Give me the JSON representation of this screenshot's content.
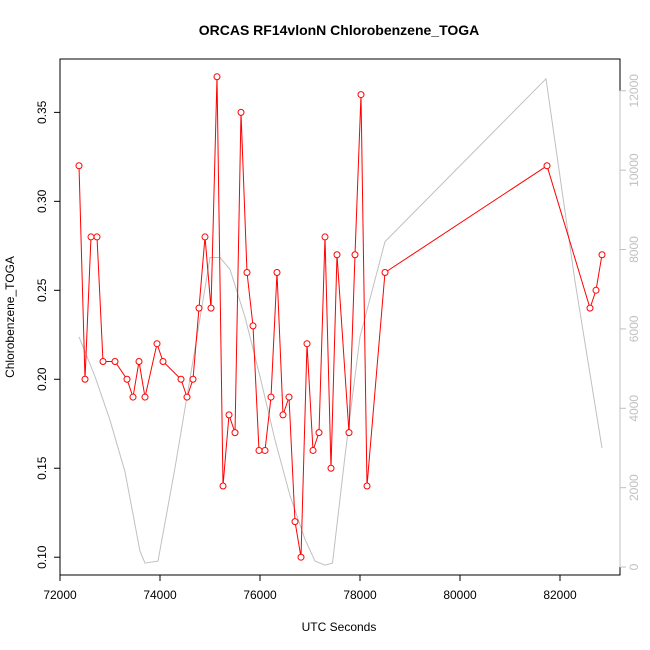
{
  "chart_data": {
    "type": "line",
    "title": "ORCAS RF14vlonN Chlorobenzene_TOGA",
    "xlabel": "UTC Seconds",
    "ylabel": "Chlorobenzene_TOGA",
    "xlim": [
      72000,
      83200
    ],
    "ylim": [
      0.09,
      0.38
    ],
    "y2lim": [
      -200,
      12800
    ],
    "x_ticks": [
      72000,
      74000,
      76000,
      78000,
      80000,
      82000
    ],
    "x_tick_labels": [
      "72000",
      "74000",
      "76000",
      "78000",
      "80000",
      "82000"
    ],
    "y_ticks": [
      0.1,
      0.15,
      0.2,
      0.25,
      0.3,
      0.35
    ],
    "y_tick_labels": [
      "0.10",
      "0.15",
      "0.20",
      "0.25",
      "0.30",
      "0.35"
    ],
    "y2_ticks": [
      0,
      2000,
      4000,
      6000,
      8000,
      10000,
      12000
    ],
    "y2_tick_labels": [
      "0",
      "2000",
      "4000",
      "6000",
      "8000",
      "10000",
      "12000"
    ],
    "grid": false,
    "colors": {
      "primary": "#ff0000",
      "secondary": "#c0c0c0",
      "axis": "#000000",
      "right_axis": "#c0c0c0"
    },
    "series": [
      {
        "axis": "left",
        "color": "#ff0000",
        "marker": "open-circle",
        "x": [
          72380,
          72500,
          72620,
          72740,
          72860,
          73100,
          73340,
          73460,
          73580,
          73700,
          73940,
          74060,
          74420,
          74540,
          74660,
          74780,
          74900,
          75020,
          75140,
          75260,
          75380,
          75500,
          75620,
          75740,
          75860,
          75980,
          76100,
          76220,
          76340,
          76460,
          76580,
          76700,
          76820,
          76940,
          77060,
          77180,
          77300,
          77420,
          77540,
          77780,
          77900,
          78020,
          78140,
          78500,
          81740,
          82600,
          82720,
          82840
        ],
        "y": [
          0.32,
          0.2,
          0.28,
          0.28,
          0.21,
          0.21,
          0.2,
          0.19,
          0.21,
          0.19,
          0.22,
          0.21,
          0.2,
          0.19,
          0.2,
          0.24,
          0.28,
          0.24,
          0.37,
          0.14,
          0.18,
          0.17,
          0.35,
          0.26,
          0.23,
          0.16,
          0.16,
          0.19,
          0.26,
          0.18,
          0.19,
          0.12,
          0.1,
          0.22,
          0.16,
          0.17,
          0.28,
          0.15,
          0.27,
          0.17,
          0.27,
          0.36,
          0.14,
          0.26,
          0.32,
          0.24,
          0.25,
          0.27
        ]
      },
      {
        "axis": "right",
        "color": "#c0c0c0",
        "marker": "none",
        "x": [
          72380,
          72700,
          73000,
          73300,
          73600,
          73700,
          73960,
          74300,
          74700,
          75000,
          75200,
          75400,
          75700,
          76000,
          76300,
          76600,
          76900,
          77100,
          77300,
          77450,
          77700,
          78000,
          78500,
          81720,
          82300,
          82840
        ],
        "y": [
          5800,
          4800,
          3700,
          2400,
          400,
          100,
          150,
          2500,
          5500,
          7800,
          7800,
          7500,
          6300,
          4800,
          3200,
          1800,
          700,
          150,
          50,
          100,
          2800,
          5800,
          8200,
          12300,
          7200,
          3000
        ]
      }
    ]
  }
}
